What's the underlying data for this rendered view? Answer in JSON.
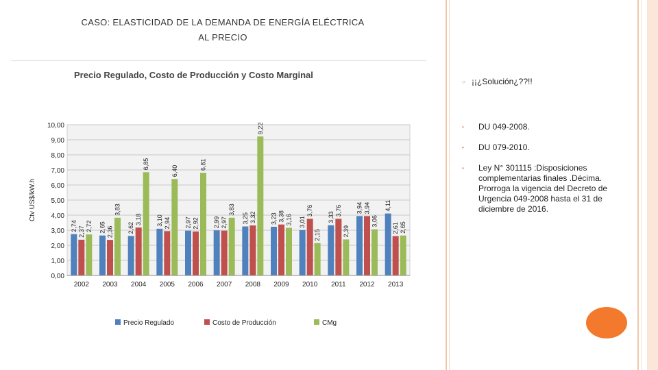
{
  "slide": {
    "title_line1": "CASO: ELASTICIDAD DE LA DEMANDA DE ENERGÍA ELÉCTRICA",
    "title_line2": "AL PRECIO"
  },
  "bullets": [
    {
      "mark": "○",
      "text": "¡¡¿Solución¿??!!"
    },
    {
      "mark": "•",
      "text": "DU 049-2008."
    },
    {
      "mark": "•",
      "text": "DU 079-2010."
    },
    {
      "mark": "•",
      "text": "Ley N° 301115 :Disposiciones complementarias finales .Décima. Prorroga la vigencia del Decreto de Urgencia 049-2008 hasta el 31 de diciembre de 2016."
    }
  ],
  "colors": {
    "accent": "#f37a2c",
    "border": "#f2c6a8"
  },
  "chart_data": {
    "type": "bar",
    "title": "Precio Regulado, Costo de Producción y Costo Marginal",
    "xlabel": "",
    "ylabel": "Ctv US$/kW.h",
    "ylim": [
      0,
      10
    ],
    "yticks": [
      "0,00",
      "1,00",
      "2,00",
      "3,00",
      "4,00",
      "5,00",
      "6,00",
      "7,00",
      "8,00",
      "9,00",
      "10,00"
    ],
    "categories": [
      "2002",
      "2003",
      "2004",
      "2005",
      "2006",
      "2007",
      "2008",
      "2009",
      "2010",
      "2011",
      "2012",
      "2013"
    ],
    "series": [
      {
        "name": "Precio Regulado",
        "color": "#4f81bd",
        "values": [
          2.74,
          2.65,
          2.62,
          3.1,
          2.97,
          2.99,
          3.25,
          3.23,
          3.01,
          3.33,
          3.94,
          4.11
        ],
        "labels": [
          "2,74",
          "2,65",
          "2,62",
          "3,10",
          "2,97",
          "2,99",
          "3,25",
          "3,23",
          "3,01",
          "3,33",
          "3,94",
          "4,11"
        ]
      },
      {
        "name": "Costo de Producción",
        "color": "#c0504d",
        "values": [
          2.37,
          2.36,
          3.18,
          2.94,
          2.92,
          2.97,
          3.32,
          3.38,
          3.76,
          3.76,
          3.94,
          2.61
        ],
        "labels": [
          "2,37",
          "2,36",
          "3,18",
          "2,94",
          "2,92",
          "2,97",
          "3,32",
          "3,38",
          "3,76",
          "3,76",
          "3,94",
          "2,61"
        ]
      },
      {
        "name": "CMg",
        "color": "#9bbb59",
        "values": [
          2.72,
          3.83,
          6.85,
          6.4,
          6.81,
          3.83,
          9.22,
          3.16,
          2.15,
          2.39,
          3.06,
          2.65
        ],
        "labels": [
          "2,72",
          "3,83",
          "6,85",
          "6,40",
          "6,81",
          "3,83",
          "9,22",
          "3,16",
          "2,15",
          "2,39",
          "3,06",
          "2,65"
        ]
      }
    ],
    "legend_position": "bottom"
  }
}
